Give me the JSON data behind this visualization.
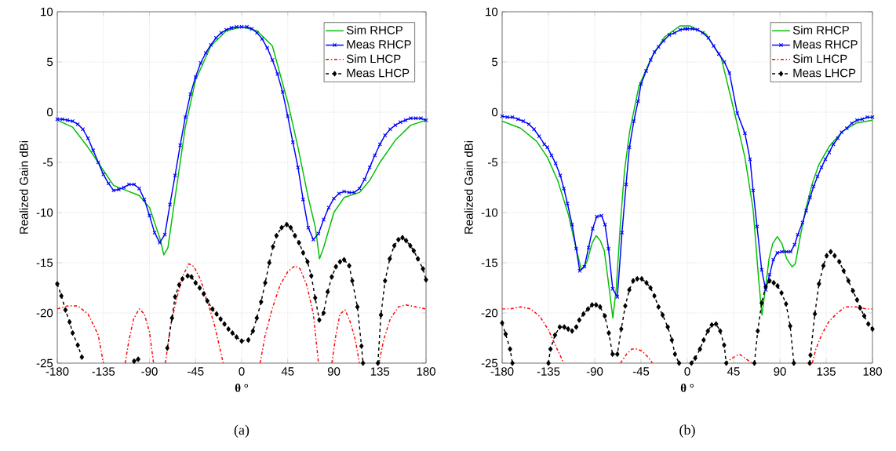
{
  "chart_data": [
    {
      "type": "line",
      "xlabel": "θ °",
      "ylabel": "Realized Gain dBi",
      "xlim": [
        -180,
        180
      ],
      "ylim": [
        -25,
        10
      ],
      "xticks": [
        -180,
        -135,
        -90,
        -45,
        0,
        45,
        90,
        135,
        180
      ],
      "yticks": [
        -25,
        -20,
        -15,
        -10,
        -5,
        0,
        5,
        10
      ],
      "grid": true,
      "legend": "top right",
      "annotations": [
        "(a)"
      ],
      "series": [
        {
          "name": "Sim RHCP",
          "color": "#00c000",
          "marker": "none",
          "line_style": "solid",
          "x": [
            -180,
            -165,
            -150,
            -135,
            -125,
            -115,
            -100,
            -90,
            -80,
            -76,
            -72,
            -65,
            -55,
            -45,
            -30,
            -15,
            0,
            15,
            30,
            45,
            55,
            65,
            72,
            76,
            80,
            90,
            100,
            115,
            125,
            135,
            150,
            165,
            180
          ],
          "values": [
            -0.8,
            -1.5,
            -3.5,
            -5.8,
            -7.3,
            -7.7,
            -8.3,
            -9.5,
            -12.5,
            -14.2,
            -13.5,
            -8.5,
            -1.5,
            3.2,
            6.6,
            8.1,
            8.5,
            8.1,
            6.6,
            1.0,
            -3.5,
            -8.5,
            -11.5,
            -14.6,
            -13.5,
            -10,
            -8.5,
            -8,
            -6.8,
            -5,
            -2.8,
            -1.3,
            -0.8
          ]
        },
        {
          "name": "Meas RHCP",
          "color": "#0000ff",
          "marker": "cross",
          "line_style": "solid",
          "x": [
            -180,
            -175,
            -170,
            -165,
            -160,
            -155,
            -150,
            -145,
            -140,
            -135,
            -130,
            -125,
            -120,
            -115,
            -110,
            -105,
            -100,
            -95,
            -90,
            -85,
            -80,
            -75,
            -70,
            -65,
            -60,
            -55,
            -50,
            -45,
            -40,
            -35,
            -30,
            -25,
            -20,
            -15,
            -10,
            -5,
            0,
            5,
            10,
            15,
            20,
            25,
            30,
            35,
            40,
            45,
            50,
            55,
            60,
            65,
            70,
            75,
            80,
            85,
            90,
            95,
            100,
            105,
            110,
            115,
            120,
            125,
            130,
            135,
            140,
            145,
            150,
            155,
            160,
            165,
            170,
            175,
            180
          ],
          "values": [
            -0.7,
            -0.7,
            -0.8,
            -0.9,
            -1.2,
            -1.7,
            -2.6,
            -3.8,
            -5.0,
            -6.2,
            -7.1,
            -7.8,
            -7.7,
            -7.5,
            -7.2,
            -7.2,
            -7.6,
            -8.7,
            -10.3,
            -12,
            -13,
            -12.2,
            -9.2,
            -6.3,
            -3.3,
            -0.5,
            1.8,
            3.5,
            4.9,
            5.9,
            6.7,
            7.4,
            7.9,
            8.2,
            8.4,
            8.5,
            8.5,
            8.5,
            8.3,
            7.9,
            7.3,
            6.4,
            5.2,
            3.8,
            2.0,
            -0.4,
            -3.0,
            -5.5,
            -8.7,
            -11.5,
            -12.7,
            -12.1,
            -10.7,
            -9.5,
            -8.6,
            -8.1,
            -7.9,
            -8.0,
            -8.0,
            -7.6,
            -6.7,
            -5.5,
            -4.3,
            -3.2,
            -2.3,
            -1.7,
            -1.3,
            -1.0,
            -0.8,
            -0.6,
            -0.6,
            -0.6,
            -0.8
          ]
        },
        {
          "name": "Sim LHCP",
          "color": "#ff0000",
          "marker": "none",
          "line_style": "dashdot",
          "x": [
            -180,
            -170,
            -160,
            -150,
            -140,
            -135,
            -124,
            -113.7,
            -110,
            -105.5,
            -100,
            -95,
            -90,
            -86,
            -80,
            -74.5,
            -69.5,
            -64,
            -58,
            -51.5,
            -46.5,
            -40,
            -33.5,
            -26,
            -18,
            0,
            18,
            23,
            29.8,
            37.6,
            45,
            52,
            57,
            63.5,
            70,
            75,
            81,
            88,
            92,
            96,
            101,
            106,
            111,
            115,
            124,
            134,
            138.6,
            145,
            153,
            160.6,
            170,
            180
          ],
          "values": [
            -19.6,
            -19.3,
            -19.3,
            -20.1,
            -22.2,
            -25,
            null,
            -25,
            -22.7,
            -20.6,
            -19.6,
            -20.1,
            -21.9,
            -25,
            null,
            -25,
            -21.4,
            -18.8,
            -16.4,
            -15.1,
            -15.4,
            -16.7,
            -18.8,
            -21.4,
            -25,
            null,
            -25,
            -22.2,
            -19.6,
            -17.2,
            -15.9,
            -15.3,
            -15.6,
            -17.2,
            -20.1,
            -25,
            null,
            -25,
            -22.2,
            -20.1,
            -19.7,
            -20.9,
            -22.7,
            -25,
            null,
            -25,
            -22.7,
            -20.6,
            -19.4,
            -19.2,
            -19.4,
            -19.6
          ]
        },
        {
          "name": "Meas LHCP",
          "color": "#000000",
          "marker": "diamond",
          "line_style": "dashed",
          "x": [
            -180,
            -176,
            -172,
            -168,
            -165,
            -160,
            -156,
            -130,
            -105,
            -101,
            -90,
            -72.6,
            -68,
            -65,
            -61,
            -57.8,
            -52.7,
            -49,
            -45,
            -41,
            -37,
            -33.5,
            -28.5,
            -24.5,
            -20.6,
            -16.8,
            -12.9,
            -9,
            -5,
            0,
            6.5,
            11,
            14.8,
            19,
            23,
            27,
            30.6,
            34,
            39,
            44,
            48,
            52,
            56,
            60,
            64.3,
            68,
            71.8,
            75.8,
            80,
            84,
            88,
            92,
            96,
            100,
            105,
            108,
            113,
            117,
            118.5,
            126,
            133,
            136,
            140,
            144.6,
            149,
            153,
            157,
            160.6,
            164.6,
            168,
            172,
            177,
            180
          ],
          "values": [
            -17.1,
            -18.3,
            -19.7,
            -20.9,
            -22,
            -23.2,
            -24.4,
            null,
            -24.8,
            -24.6,
            null,
            -23.5,
            -20.5,
            -18.4,
            -17.2,
            -16.6,
            -16.3,
            -16.4,
            -17,
            -17.5,
            -18.1,
            -18.8,
            -19.6,
            -20.1,
            -20.6,
            -21.1,
            -21.6,
            -22,
            -22.4,
            -22.8,
            -22.7,
            -21.8,
            -20.5,
            -18.9,
            -17,
            -15,
            -13.4,
            -12.3,
            -11.5,
            -11.2,
            -11.5,
            -12.3,
            -13,
            -14,
            -14.9,
            -16.3,
            -18.5,
            -20.7,
            -20,
            -17.9,
            -16.4,
            -15.4,
            -14.9,
            -14.7,
            -15.3,
            -16.8,
            -19.4,
            -23.3,
            -25,
            null,
            -25,
            -20.2,
            -16.8,
            -14.6,
            -13.3,
            -12.7,
            -12.5,
            -12.8,
            -13.3,
            -13.8,
            -14.6,
            -15.6,
            -16.7
          ]
        }
      ]
    },
    {
      "type": "line",
      "xlabel": "θ °",
      "ylabel": "Realized Gain dBi",
      "xlim": [
        -180,
        180
      ],
      "ylim": [
        -25,
        10
      ],
      "xticks": [
        -180,
        -135,
        -90,
        -45,
        0,
        45,
        90,
        135,
        180
      ],
      "yticks": [
        -25,
        -20,
        -15,
        -10,
        -5,
        0,
        5,
        10
      ],
      "grid": true,
      "legend": "top right",
      "annotations": [
        "(b)"
      ],
      "series": [
        {
          "name": "Sim RHCP",
          "color": "#00c000",
          "marker": "none",
          "line_style": "solid",
          "x": [
            -180,
            -162,
            -146.5,
            -136,
            -126,
            -115.6,
            -108,
            -103,
            -97.5,
            -92.4,
            -88.5,
            -84.6,
            -80.7,
            -76,
            -72.4,
            -69,
            -65,
            -61,
            -56,
            -47,
            -35,
            -22,
            -7,
            2.5,
            18,
            33,
            46,
            56,
            64,
            69,
            72.5,
            76,
            79.5,
            83,
            87.5,
            92,
            96.6,
            101.8,
            105,
            110,
            115,
            121.5,
            128,
            138,
            151,
            164,
            180
          ],
          "values": [
            -0.9,
            -1.6,
            -2.9,
            -4.5,
            -6.8,
            -10.2,
            -13.6,
            -15.7,
            -14.9,
            -13,
            -12.3,
            -12.8,
            -13.8,
            -17.5,
            -20.5,
            -17.5,
            -11,
            -5.8,
            -1.9,
            2.6,
            5.4,
            7.5,
            8.6,
            8.6,
            7.8,
            5.4,
            -0.1,
            -4.5,
            -9.7,
            -16.2,
            -20.2,
            -17.5,
            -14.6,
            -13.1,
            -12.4,
            -13.1,
            -14.6,
            -15.4,
            -15.1,
            -12.3,
            -9.7,
            -7.1,
            -5.2,
            -3.4,
            -1.9,
            -1.1,
            -0.8
          ]
        },
        {
          "name": "Meas RHCP",
          "color": "#0000ff",
          "marker": "cross",
          "line_style": "solid",
          "x": [
            -180,
            -175,
            -170,
            -164.5,
            -159.4,
            -154,
            -149,
            -144,
            -139,
            -136,
            -132,
            -128,
            -123.5,
            -120,
            -116.5,
            -112,
            -108,
            -104.6,
            -100,
            -96,
            -92,
            -88,
            -83.5,
            -80,
            -76.6,
            -72.5,
            -68,
            -63.5,
            -59.5,
            -56.3,
            -52,
            -47.8,
            -45,
            -40,
            -35.6,
            -32,
            -28,
            -23,
            -17.5,
            -12.4,
            -7,
            -2,
            0,
            5,
            10,
            15,
            20.5,
            25.6,
            30.7,
            36,
            41,
            48.6,
            56,
            61,
            64,
            67.8,
            72.3,
            76.2,
            80,
            83.6,
            87.5,
            92,
            96.4,
            100.5,
            104.3,
            107.4,
            112,
            115.6,
            119.4,
            122.8,
            126.6,
            130.4,
            134.2,
            138,
            142,
            146.3,
            150,
            155,
            160,
            165,
            170,
            175,
            180
          ],
          "values": [
            -0.4,
            -0.5,
            -0.5,
            -0.7,
            -0.9,
            -1.2,
            -1.7,
            -2.4,
            -3.2,
            -3.5,
            -4.3,
            -5.1,
            -6.3,
            -7.6,
            -9.1,
            -11.2,
            -13.6,
            -15.8,
            -15.4,
            -13.5,
            -11.6,
            -10.4,
            -10.3,
            -11.2,
            -13.6,
            -17.6,
            -18.4,
            -12,
            -7.2,
            -3.5,
            -0.9,
            1.1,
            2.8,
            4.1,
            5.2,
            6,
            6.5,
            7.1,
            7.7,
            7.9,
            8.2,
            8.3,
            8.3,
            8.3,
            8.2,
            7.9,
            7.4,
            6.6,
            5.8,
            5,
            3.9,
            -0.1,
            -2.1,
            -4.7,
            -7.8,
            -11.4,
            -15.7,
            -17.7,
            -16.2,
            -14.7,
            -14,
            -13.9,
            -13.9,
            -13.9,
            -13.2,
            -12.2,
            -11,
            -9.8,
            -8.5,
            -7.4,
            -6.4,
            -5.5,
            -4.7,
            -4,
            -3.2,
            -2.6,
            -2,
            -1.6,
            -1.1,
            -0.8,
            -0.7,
            -0.5,
            -0.5
          ]
        },
        {
          "name": "Sim LHCP",
          "color": "#ff0000",
          "marker": "none",
          "line_style": "dashdot",
          "x": [
            -180,
            -172,
            -162,
            -152,
            -143,
            -135,
            -127,
            -120,
            -90,
            -65,
            -59,
            -54,
            -49,
            -43.8,
            -37.3,
            -34,
            0,
            37,
            43.5,
            50.6,
            57.5,
            62.7,
            90,
            121.5,
            125,
            130.4,
            138,
            146,
            153.5,
            164,
            174,
            180
          ],
          "values": [
            -19.6,
            -19.6,
            -19.4,
            -19.6,
            -20.4,
            -21.7,
            -23.5,
            -25,
            null,
            -25,
            -24.1,
            -23.6,
            -23.6,
            -23.8,
            -24.5,
            -25,
            null,
            -25,
            -24.5,
            -24.1,
            -24.6,
            -25,
            null,
            -25,
            -23.6,
            -22.2,
            -20.8,
            -20,
            -19.4,
            -19.4,
            -19.6,
            -19.6
          ]
        },
        {
          "name": "Meas LHCP",
          "color": "#000000",
          "marker": "diamond",
          "line_style": "dashed",
          "x": [
            -180,
            -176.6,
            -172.3,
            -170,
            -150,
            -135,
            -133,
            -128.6,
            -124,
            -119.6,
            -115.8,
            -112,
            -108,
            -105,
            -100.9,
            -96.5,
            -92.6,
            -88.7,
            -84.8,
            -80.2,
            -76.3,
            -72.7,
            -68,
            -64.2,
            -60.3,
            -56.4,
            -52.6,
            -48.7,
            -44.3,
            -39.7,
            -35.8,
            -32,
            -28,
            -24,
            -19,
            -15,
            -12,
            -8,
            0,
            4,
            7.7,
            12.3,
            15.9,
            20,
            23.8,
            28,
            32,
            35.8,
            37.9,
            50,
            65.2,
            68.5,
            72.3,
            76.2,
            80,
            84,
            87.7,
            91.6,
            96,
            100,
            103.6,
            110,
            119,
            119.7,
            124,
            128,
            132.3,
            135.5,
            139.4,
            143.2,
            147.8,
            152,
            156.6,
            161,
            165,
            168,
            172,
            176,
            180
          ],
          "values": [
            -21,
            -22.1,
            -23.6,
            -25,
            null,
            -25,
            -23.6,
            -22.2,
            -21.4,
            -21.4,
            -21.6,
            -21.8,
            -21.4,
            -20.7,
            -20.1,
            -19.6,
            -19.2,
            -19.2,
            -19.4,
            -20.3,
            -22,
            -24.1,
            -24.1,
            -21.6,
            -19.3,
            -17.7,
            -16.8,
            -16.6,
            -16.6,
            -17,
            -17.5,
            -18.3,
            -19.4,
            -20.2,
            -21.4,
            -22.7,
            -24.1,
            -25,
            null,
            -25,
            -24.5,
            -23.6,
            -22.7,
            -21.8,
            -21.2,
            -21.1,
            -21.8,
            -23.2,
            -25,
            null,
            -25,
            -21.8,
            -19,
            -17.4,
            -16.8,
            -17,
            -17.3,
            -18,
            -19.1,
            -21.3,
            -25,
            null,
            -25,
            -24.2,
            -20.1,
            -17.1,
            -15.3,
            -14.3,
            -13.9,
            -14.3,
            -14.9,
            -15.8,
            -16.8,
            -17.8,
            -18.7,
            -19.5,
            -20.3,
            -21.1,
            -21.6
          ]
        }
      ]
    }
  ]
}
